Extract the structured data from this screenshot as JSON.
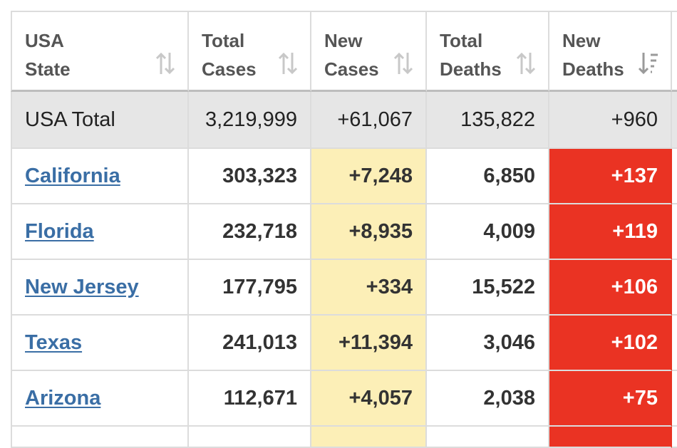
{
  "headers": [
    {
      "label": "USA\nState",
      "sort_icon": "sort-both-icon"
    },
    {
      "label": "Total\nCases",
      "sort_icon": "sort-both-icon"
    },
    {
      "label": "New\nCases",
      "sort_icon": "sort-both-icon"
    },
    {
      "label": "Total\nDeaths",
      "sort_icon": "sort-both-icon"
    },
    {
      "label": "New\nDeaths",
      "sort_icon": "sort-descending-icon"
    }
  ],
  "total_row": {
    "state": "USA Total",
    "total_cases": "3,219,999",
    "new_cases": "+61,067",
    "total_deaths": "135,822",
    "new_deaths": "+960"
  },
  "rows": [
    {
      "state": "California",
      "total_cases": "303,323",
      "new_cases": "+7,248",
      "total_deaths": "6,850",
      "new_deaths": "+137"
    },
    {
      "state": "Florida",
      "total_cases": "232,718",
      "new_cases": "+8,935",
      "total_deaths": "4,009",
      "new_deaths": "+119"
    },
    {
      "state": "New Jersey",
      "total_cases": "177,795",
      "new_cases": "+334",
      "total_deaths": "15,522",
      "new_deaths": "+106"
    },
    {
      "state": "Texas",
      "total_cases": "241,013",
      "new_cases": "+11,394",
      "total_deaths": "3,046",
      "new_deaths": "+102"
    },
    {
      "state": "Arizona",
      "total_cases": "112,671",
      "new_cases": "+4,057",
      "total_deaths": "2,038",
      "new_deaths": "+75"
    }
  ],
  "colors": {
    "new_cases_bg": "#fcefb7",
    "new_deaths_bg": "#ea3323",
    "link": "#3a6ea5",
    "total_row_bg": "#e6e6e6"
  }
}
